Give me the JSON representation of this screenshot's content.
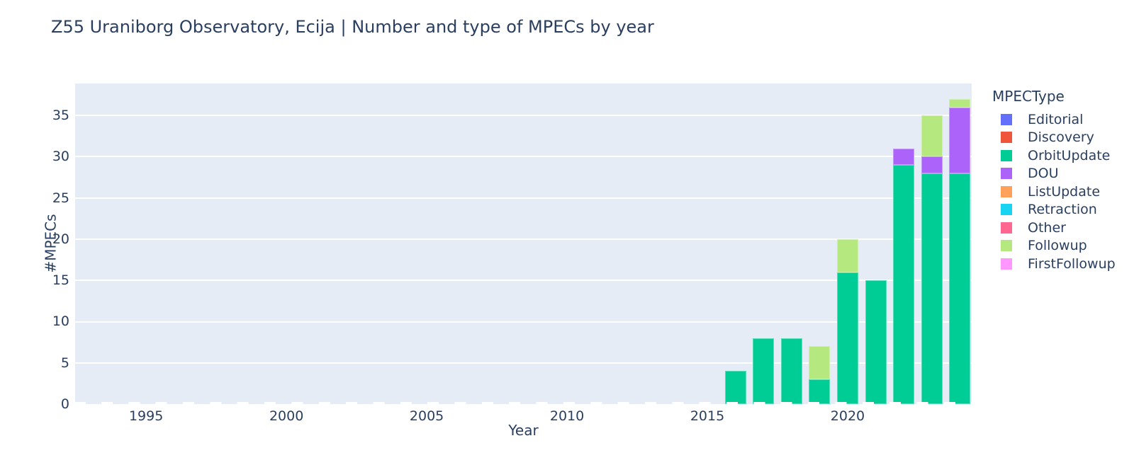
{
  "title": "Z55 Uraniborg Observatory, Ecija | Number and type of MPECs by year",
  "chart_data": {
    "type": "bar",
    "stacked": true,
    "title": "Z55 Uraniborg Observatory, Ecija | Number and type of MPECs by year",
    "xlabel": "Year",
    "ylabel": "#MPECs",
    "legend_title": "MPECType",
    "legend_position": "right",
    "grid": true,
    "plot_bg": "#E5ECF6",
    "grid_color": "#FFFFFF",
    "text_color": "#2a3f5f",
    "x": [
      2016,
      2017,
      2018,
      2019,
      2020,
      2021,
      2022,
      2023,
      2024
    ],
    "series": [
      {
        "name": "Editorial",
        "color": "#636EFA",
        "values": [
          0,
          0,
          0,
          0,
          0,
          0,
          0,
          0,
          0
        ]
      },
      {
        "name": "Discovery",
        "color": "#EF553B",
        "values": [
          0,
          0,
          0,
          0,
          0,
          0,
          0,
          0,
          0
        ]
      },
      {
        "name": "OrbitUpdate",
        "color": "#00CC96",
        "values": [
          4,
          8,
          8,
          3,
          16,
          15,
          29,
          28,
          28
        ]
      },
      {
        "name": "DOU",
        "color": "#AB63FA",
        "values": [
          0,
          0,
          0,
          0,
          0,
          0,
          2,
          2,
          8
        ]
      },
      {
        "name": "ListUpdate",
        "color": "#FFA15A",
        "values": [
          0,
          0,
          0,
          0,
          0,
          0,
          0,
          0,
          0
        ]
      },
      {
        "name": "Retraction",
        "color": "#19D3F3",
        "values": [
          0,
          0,
          0,
          0,
          0,
          0,
          0,
          0,
          0
        ]
      },
      {
        "name": "Other",
        "color": "#FF6692",
        "values": [
          0,
          0,
          0,
          0,
          0,
          0,
          0,
          0,
          0
        ]
      },
      {
        "name": "Followup",
        "color": "#B6E880",
        "values": [
          0,
          0,
          0,
          4,
          4,
          0,
          0,
          5,
          1
        ]
      },
      {
        "name": "FirstFollowup",
        "color": "#FF97FF",
        "values": [
          0,
          0,
          0,
          0,
          0,
          0,
          0,
          0,
          0
        ]
      }
    ],
    "totals": [
      4,
      8,
      8,
      7,
      20,
      15,
      31,
      35,
      37
    ],
    "x_ticks": [
      1995,
      2000,
      2005,
      2010,
      2015,
      2020
    ],
    "y_ticks": [
      0,
      5,
      10,
      15,
      20,
      25,
      30,
      35
    ],
    "x_range": [
      1992.47,
      2024.42
    ],
    "y_range": [
      0,
      38.88
    ]
  }
}
